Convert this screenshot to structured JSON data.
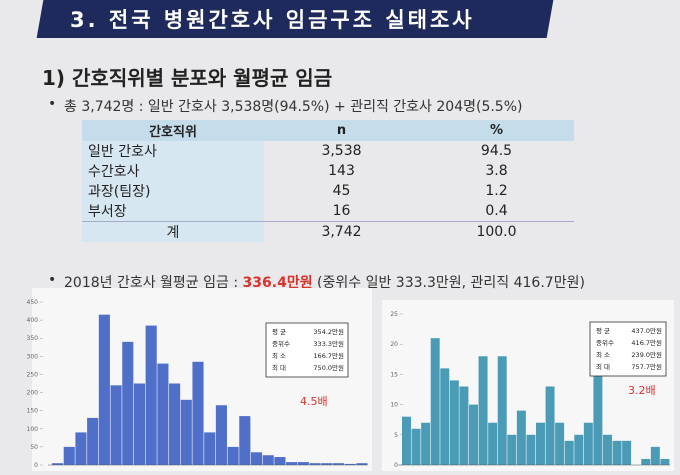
{
  "header": {
    "title": "3. 전국 병원간호사 임금구조 실태조사"
  },
  "section": {
    "heading": "1) 간호직위별 분포와 월평균 임금"
  },
  "bullets": {
    "summary": "총 3,742명 : 일반 간호사 3,538명(94.5%) + 관리직 간호사 204명(5.5%)",
    "wage_prefix": "2018년 간호사 월평균 임금 : ",
    "wage_value": "336.4만원",
    "wage_suffix": " (중위수 일반 333.3만원, 관리직 416.7만원)"
  },
  "table": {
    "header": [
      "간호직위",
      "n",
      "%"
    ],
    "rows": [
      [
        "일반 간호사",
        "3,538",
        "94.5"
      ],
      [
        "수간호사",
        "143",
        "3.8"
      ],
      [
        "과장(팀장)",
        "45",
        "1.2"
      ],
      [
        "부서장",
        "16",
        "0.4"
      ]
    ],
    "total": [
      "계",
      "3,742",
      "100.0"
    ]
  },
  "histograms": [
    {
      "color": "#4f6fc9",
      "ylim": [
        0,
        450
      ],
      "yticks": [
        0,
        50,
        100,
        150,
        200,
        250,
        300,
        350,
        400,
        450
      ],
      "counts": [
        5,
        50,
        90,
        130,
        415,
        220,
        340,
        225,
        385,
        280,
        225,
        180,
        285,
        90,
        165,
        50,
        135,
        35,
        27,
        22,
        8,
        8,
        5,
        5,
        5,
        3,
        5
      ],
      "stats": [
        [
          "평 균",
          "354.2만원"
        ],
        [
          "중위수",
          "333.3만원"
        ],
        [
          "최 소",
          "166.7만원"
        ],
        [
          "최 대",
          "750.0만원"
        ]
      ],
      "ratio": "4.5배"
    },
    {
      "color": "#4a9bb5",
      "ylim": [
        0,
        25
      ],
      "yticks": [
        0,
        5,
        10,
        15,
        20,
        25
      ],
      "counts": [
        8,
        6,
        7,
        21,
        16,
        14,
        13,
        10,
        18,
        7,
        18,
        5,
        9,
        5,
        7,
        13,
        7,
        4,
        5,
        7,
        18,
        5,
        4,
        4,
        0,
        1,
        3,
        1
      ],
      "stats": [
        [
          "평 균",
          "437.0만원"
        ],
        [
          "중위수",
          "416.7만원"
        ],
        [
          "최 소",
          "239.0만원"
        ],
        [
          "최 대",
          "757.7만원"
        ]
      ],
      "ratio": "3.2배"
    }
  ]
}
